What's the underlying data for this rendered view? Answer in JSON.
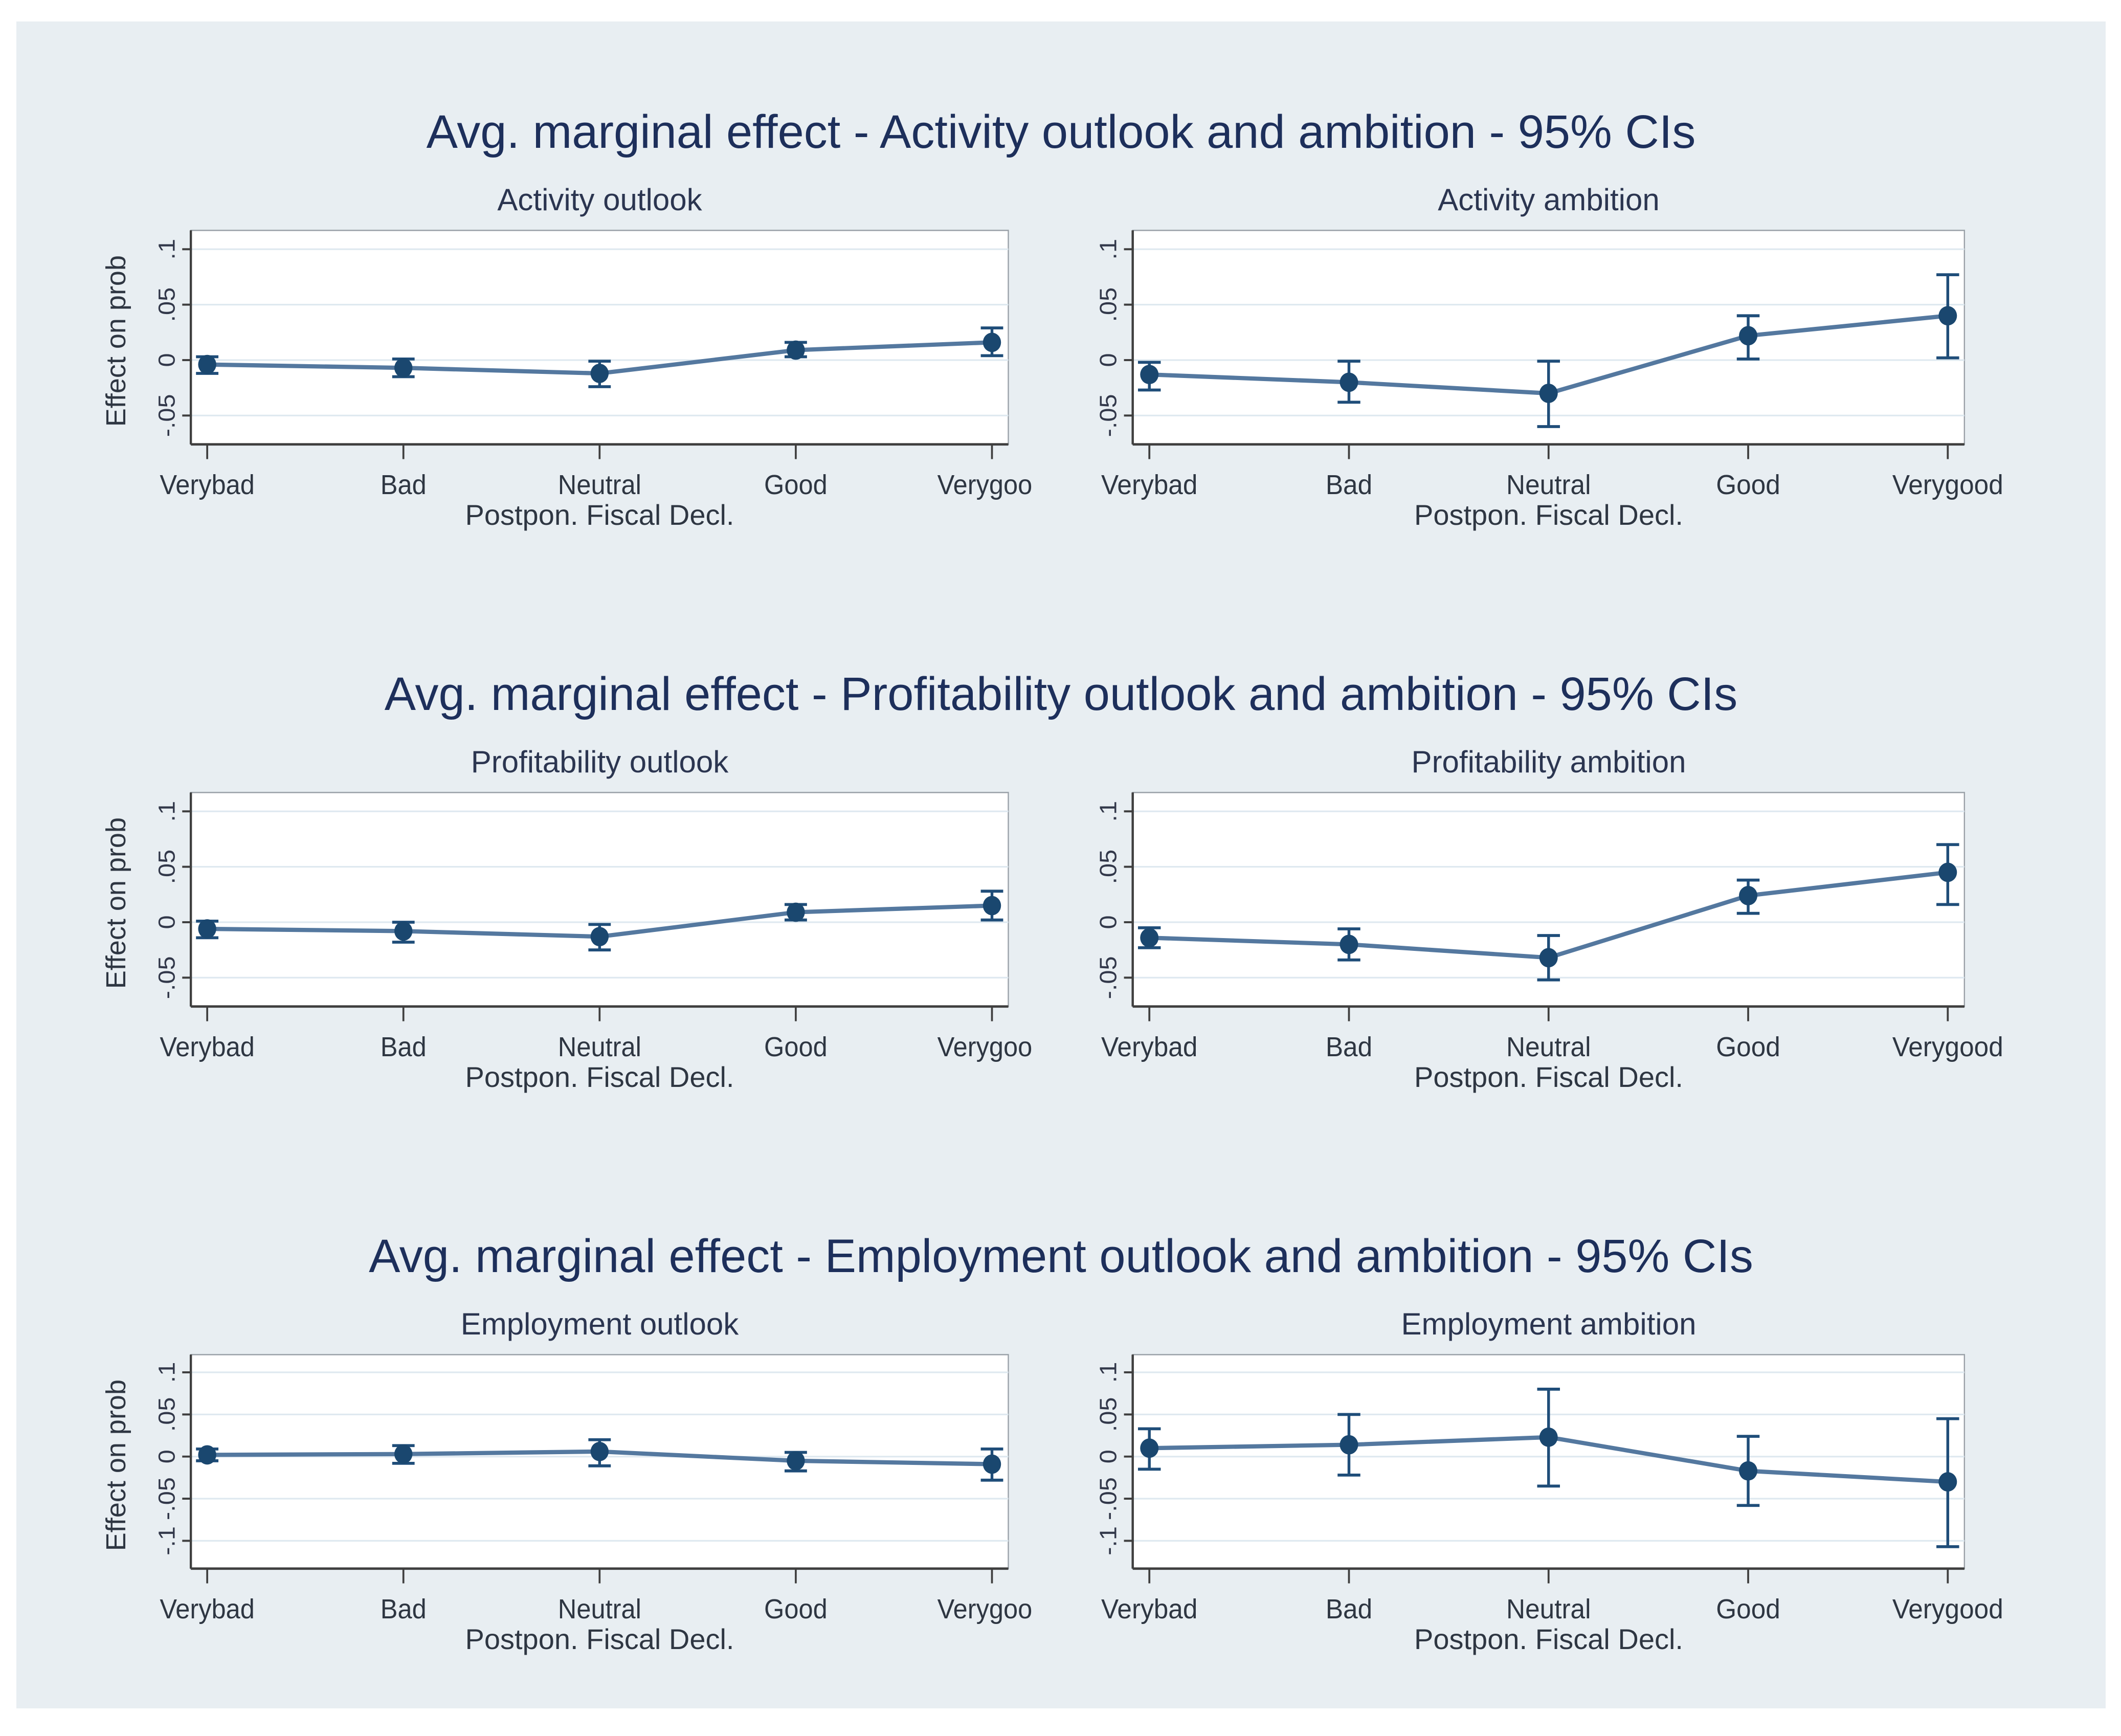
{
  "colors": {
    "figure_background": "#e8eef2",
    "plot_background": "#ffffff",
    "gridline": "#dfe9f0",
    "plot_border": "#9aa1a8",
    "axis": "#3f3f3f",
    "marker": "#1a476f",
    "error_bar": "#1f4d79",
    "line": "#54789f",
    "row_title_text": "#1d2f5b",
    "label_text": "#2e3642",
    "tick_text": "#32384a"
  },
  "chart_data": [
    {
      "row_title": "Avg. marginal effect - Activity outlook and ambition - 95% CIs",
      "panels": [
        {
          "type": "line",
          "title": "Activity outlook",
          "ylabel": "Effect on prob",
          "xlabel": "Postpon. Fiscal Decl.",
          "categories": [
            "Verybad",
            "Bad",
            "Neutral",
            "Good",
            "Verygood"
          ],
          "values": [
            -0.004,
            -0.007,
            -0.012,
            0.009,
            0.016
          ],
          "ci_low": [
            -0.012,
            -0.015,
            -0.024,
            0.003,
            0.004
          ],
          "ci_high": [
            0.003,
            0.001,
            -0.001,
            0.016,
            0.029
          ],
          "yticks": [
            0.1,
            0.05,
            0,
            -0.05
          ],
          "ytick_labels": [
            ".1",
            ".05",
            "0",
            "-.05"
          ],
          "ylim": [
            -0.076,
            0.117
          ],
          "grid": true,
          "legend": "none"
        },
        {
          "type": "line",
          "title": "Activity ambition",
          "xlabel": "Postpon. Fiscal Decl.",
          "categories": [
            "Verybad",
            "Bad",
            "Neutral",
            "Good",
            "Verygood"
          ],
          "values": [
            -0.013,
            -0.02,
            -0.03,
            0.022,
            0.04
          ],
          "ci_low": [
            -0.027,
            -0.038,
            -0.06,
            0.001,
            0.002
          ],
          "ci_high": [
            -0.002,
            -0.001,
            -0.001,
            0.04,
            0.077
          ],
          "yticks": [
            0.1,
            0.05,
            0,
            -0.05
          ],
          "ytick_labels": [
            ".1",
            ".05",
            "0",
            "-.05"
          ],
          "ylim": [
            -0.076,
            0.117
          ],
          "grid": true,
          "legend": "none"
        }
      ]
    },
    {
      "row_title": "Avg. marginal effect - Profitability outlook and ambition - 95% CIs",
      "panels": [
        {
          "type": "line",
          "title": "Profitability outlook",
          "ylabel": "Effect on prob",
          "xlabel": "Postpon. Fiscal Decl.",
          "categories": [
            "Verybad",
            "Bad",
            "Neutral",
            "Good",
            "Verygood"
          ],
          "values": [
            -0.006,
            -0.008,
            -0.013,
            0.009,
            0.015
          ],
          "ci_low": [
            -0.014,
            -0.018,
            -0.025,
            0.002,
            0.002
          ],
          "ci_high": [
            0.001,
            0.0,
            -0.002,
            0.016,
            0.028
          ],
          "yticks": [
            0.1,
            0.05,
            0,
            -0.05
          ],
          "ytick_labels": [
            ".1",
            ".05",
            "0",
            "-.05"
          ],
          "ylim": [
            -0.076,
            0.117
          ],
          "grid": true,
          "legend": "none"
        },
        {
          "type": "line",
          "title": "Profitability ambition",
          "xlabel": "Postpon. Fiscal Decl.",
          "categories": [
            "Verybad",
            "Bad",
            "Neutral",
            "Good",
            "Verygood"
          ],
          "values": [
            -0.014,
            -0.02,
            -0.032,
            0.024,
            0.045
          ],
          "ci_low": [
            -0.023,
            -0.034,
            -0.052,
            0.008,
            0.016
          ],
          "ci_high": [
            -0.005,
            -0.006,
            -0.012,
            0.038,
            0.07
          ],
          "yticks": [
            0.1,
            0.05,
            0,
            -0.05
          ],
          "ytick_labels": [
            ".1",
            ".05",
            "0",
            "-.05"
          ],
          "ylim": [
            -0.076,
            0.117
          ],
          "grid": true,
          "legend": "none"
        }
      ]
    },
    {
      "row_title": "Avg. marginal effect - Employment outlook and ambition - 95% CIs",
      "panels": [
        {
          "type": "line",
          "title": "Employment outlook",
          "ylabel": "Effect on prob",
          "xlabel": "Postpon. Fiscal Decl.",
          "categories": [
            "Verybad",
            "Bad",
            "Neutral",
            "Good",
            "Verygood"
          ],
          "values": [
            0.002,
            0.003,
            0.006,
            -0.005,
            -0.009
          ],
          "ci_low": [
            -0.005,
            -0.008,
            -0.011,
            -0.017,
            -0.028
          ],
          "ci_high": [
            0.009,
            0.013,
            0.02,
            0.005,
            0.009
          ],
          "yticks": [
            0.1,
            0.05,
            0,
            -0.05,
            -0.1
          ],
          "ytick_labels": [
            ".1",
            ".05",
            "0",
            "-.05",
            "-.1"
          ],
          "ylim": [
            -0.133,
            0.121
          ],
          "grid": true,
          "legend": "none"
        },
        {
          "type": "line",
          "title": "Employment ambition",
          "xlabel": "Postpon. Fiscal Decl.",
          "categories": [
            "Verybad",
            "Bad",
            "Neutral",
            "Good",
            "Verygood"
          ],
          "values": [
            0.01,
            0.014,
            0.023,
            -0.017,
            -0.03
          ],
          "ci_low": [
            -0.015,
            -0.022,
            -0.035,
            -0.058,
            -0.107
          ],
          "ci_high": [
            0.033,
            0.05,
            0.08,
            0.024,
            0.045
          ],
          "yticks": [
            0.1,
            0.05,
            0,
            -0.05,
            -0.1
          ],
          "ytick_labels": [
            ".1",
            ".05",
            "0",
            "-.05",
            "-.1"
          ],
          "ylim": [
            -0.133,
            0.121
          ],
          "grid": true,
          "legend": "none"
        }
      ]
    }
  ]
}
